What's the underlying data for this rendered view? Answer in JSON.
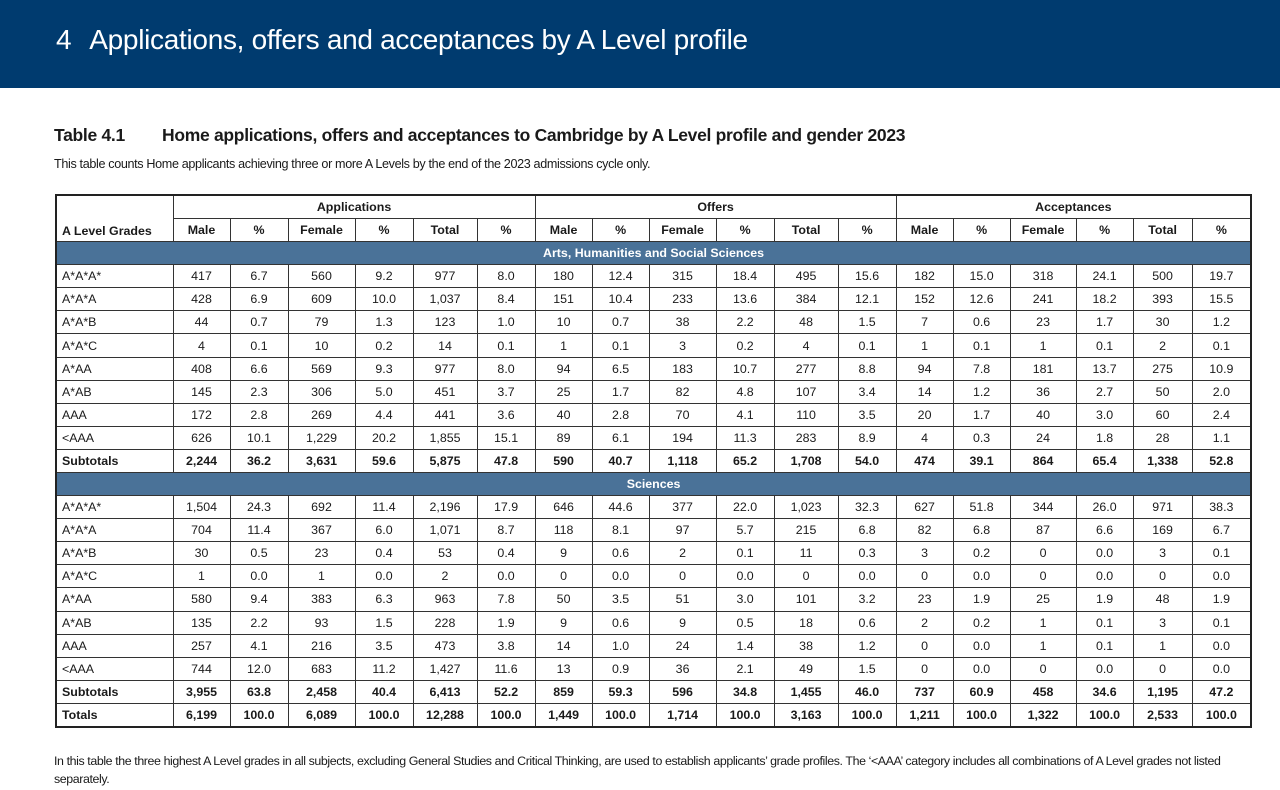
{
  "banner": {
    "number": "4",
    "title": "Applications, offers and acceptances by A Level profile"
  },
  "table": {
    "label": "Table 4.1",
    "title": "Home applications, offers and acceptances to Cambridge by A Level profile and gender 2023",
    "subtitle": "This table counts Home applicants achieving three or more A Levels by the end of the 2023 admissions cycle only.",
    "row_header": "A Level Grades",
    "groups": [
      "Applications",
      "Offers",
      "Acceptances"
    ],
    "columns": [
      "Male",
      "%",
      "Female",
      "%",
      "Total",
      "%"
    ],
    "sections": [
      {
        "name": "Arts, Humanities and Social Sciences",
        "rows": [
          {
            "grade": "A*A*A*",
            "values": [
              "417",
              "6.7",
              "560",
              "9.2",
              "977",
              "8.0",
              "180",
              "12.4",
              "315",
              "18.4",
              "495",
              "15.6",
              "182",
              "15.0",
              "318",
              "24.1",
              "500",
              "19.7"
            ]
          },
          {
            "grade": "A*A*A",
            "values": [
              "428",
              "6.9",
              "609",
              "10.0",
              "1,037",
              "8.4",
              "151",
              "10.4",
              "233",
              "13.6",
              "384",
              "12.1",
              "152",
              "12.6",
              "241",
              "18.2",
              "393",
              "15.5"
            ]
          },
          {
            "grade": "A*A*B",
            "values": [
              "44",
              "0.7",
              "79",
              "1.3",
              "123",
              "1.0",
              "10",
              "0.7",
              "38",
              "2.2",
              "48",
              "1.5",
              "7",
              "0.6",
              "23",
              "1.7",
              "30",
              "1.2"
            ]
          },
          {
            "grade": "A*A*C",
            "values": [
              "4",
              "0.1",
              "10",
              "0.2",
              "14",
              "0.1",
              "1",
              "0.1",
              "3",
              "0.2",
              "4",
              "0.1",
              "1",
              "0.1",
              "1",
              "0.1",
              "2",
              "0.1"
            ]
          },
          {
            "grade": "A*AA",
            "values": [
              "408",
              "6.6",
              "569",
              "9.3",
              "977",
              "8.0",
              "94",
              "6.5",
              "183",
              "10.7",
              "277",
              "8.8",
              "94",
              "7.8",
              "181",
              "13.7",
              "275",
              "10.9"
            ]
          },
          {
            "grade": "A*AB",
            "values": [
              "145",
              "2.3",
              "306",
              "5.0",
              "451",
              "3.7",
              "25",
              "1.7",
              "82",
              "4.8",
              "107",
              "3.4",
              "14",
              "1.2",
              "36",
              "2.7",
              "50",
              "2.0"
            ]
          },
          {
            "grade": "AAA",
            "values": [
              "172",
              "2.8",
              "269",
              "4.4",
              "441",
              "3.6",
              "40",
              "2.8",
              "70",
              "4.1",
              "110",
              "3.5",
              "20",
              "1.7",
              "40",
              "3.0",
              "60",
              "2.4"
            ]
          },
          {
            "grade": "<AAA",
            "values": [
              "626",
              "10.1",
              "1,229",
              "20.2",
              "1,855",
              "15.1",
              "89",
              "6.1",
              "194",
              "11.3",
              "283",
              "8.9",
              "4",
              "0.3",
              "24",
              "1.8",
              "28",
              "1.1"
            ]
          }
        ],
        "subtotal": {
          "grade": "Subtotals",
          "values": [
            "2,244",
            "36.2",
            "3,631",
            "59.6",
            "5,875",
            "47.8",
            "590",
            "40.7",
            "1,118",
            "65.2",
            "1,708",
            "54.0",
            "474",
            "39.1",
            "864",
            "65.4",
            "1,338",
            "52.8"
          ]
        }
      },
      {
        "name": "Sciences",
        "rows": [
          {
            "grade": "A*A*A*",
            "values": [
              "1,504",
              "24.3",
              "692",
              "11.4",
              "2,196",
              "17.9",
              "646",
              "44.6",
              "377",
              "22.0",
              "1,023",
              "32.3",
              "627",
              "51.8",
              "344",
              "26.0",
              "971",
              "38.3"
            ]
          },
          {
            "grade": "A*A*A",
            "values": [
              "704",
              "11.4",
              "367",
              "6.0",
              "1,071",
              "8.7",
              "118",
              "8.1",
              "97",
              "5.7",
              "215",
              "6.8",
              "82",
              "6.8",
              "87",
              "6.6",
              "169",
              "6.7"
            ]
          },
          {
            "grade": "A*A*B",
            "values": [
              "30",
              "0.5",
              "23",
              "0.4",
              "53",
              "0.4",
              "9",
              "0.6",
              "2",
              "0.1",
              "11",
              "0.3",
              "3",
              "0.2",
              "0",
              "0.0",
              "3",
              "0.1"
            ]
          },
          {
            "grade": "A*A*C",
            "values": [
              "1",
              "0.0",
              "1",
              "0.0",
              "2",
              "0.0",
              "0",
              "0.0",
              "0",
              "0.0",
              "0",
              "0.0",
              "0",
              "0.0",
              "0",
              "0.0",
              "0",
              "0.0"
            ]
          },
          {
            "grade": "A*AA",
            "values": [
              "580",
              "9.4",
              "383",
              "6.3",
              "963",
              "7.8",
              "50",
              "3.5",
              "51",
              "3.0",
              "101",
              "3.2",
              "23",
              "1.9",
              "25",
              "1.9",
              "48",
              "1.9"
            ]
          },
          {
            "grade": "A*AB",
            "values": [
              "135",
              "2.2",
              "93",
              "1.5",
              "228",
              "1.9",
              "9",
              "0.6",
              "9",
              "0.5",
              "18",
              "0.6",
              "2",
              "0.2",
              "1",
              "0.1",
              "3",
              "0.1"
            ]
          },
          {
            "grade": "AAA",
            "values": [
              "257",
              "4.1",
              "216",
              "3.5",
              "473",
              "3.8",
              "14",
              "1.0",
              "24",
              "1.4",
              "38",
              "1.2",
              "0",
              "0.0",
              "1",
              "0.1",
              "1",
              "0.0"
            ]
          },
          {
            "grade": "<AAA",
            "values": [
              "744",
              "12.0",
              "683",
              "11.2",
              "1,427",
              "11.6",
              "13",
              "0.9",
              "36",
              "2.1",
              "49",
              "1.5",
              "0",
              "0.0",
              "0",
              "0.0",
              "0",
              "0.0"
            ]
          }
        ],
        "subtotal": {
          "grade": "Subtotals",
          "values": [
            "3,955",
            "63.8",
            "2,458",
            "40.4",
            "6,413",
            "52.2",
            "859",
            "59.3",
            "596",
            "34.8",
            "1,455",
            "46.0",
            "737",
            "60.9",
            "458",
            "34.6",
            "1,195",
            "47.2"
          ]
        }
      }
    ],
    "totals": {
      "grade": "Totals",
      "values": [
        "6,199",
        "100.0",
        "6,089",
        "100.0",
        "12,288",
        "100.0",
        "1,449",
        "100.0",
        "1,714",
        "100.0",
        "3,163",
        "100.0",
        "1,211",
        "100.0",
        "1,322",
        "100.0",
        "2,533",
        "100.0"
      ]
    }
  },
  "footnote": "In this table the three highest A Level grades in all subjects, excluding General Studies and Critical Thinking, are used to establish applicants’ grade profiles. The ‘<AAA’ category includes all combinations of A Level grades not listed separately.",
  "colors": {
    "banner": "#003b6f",
    "section_bar": "#4a7298"
  }
}
